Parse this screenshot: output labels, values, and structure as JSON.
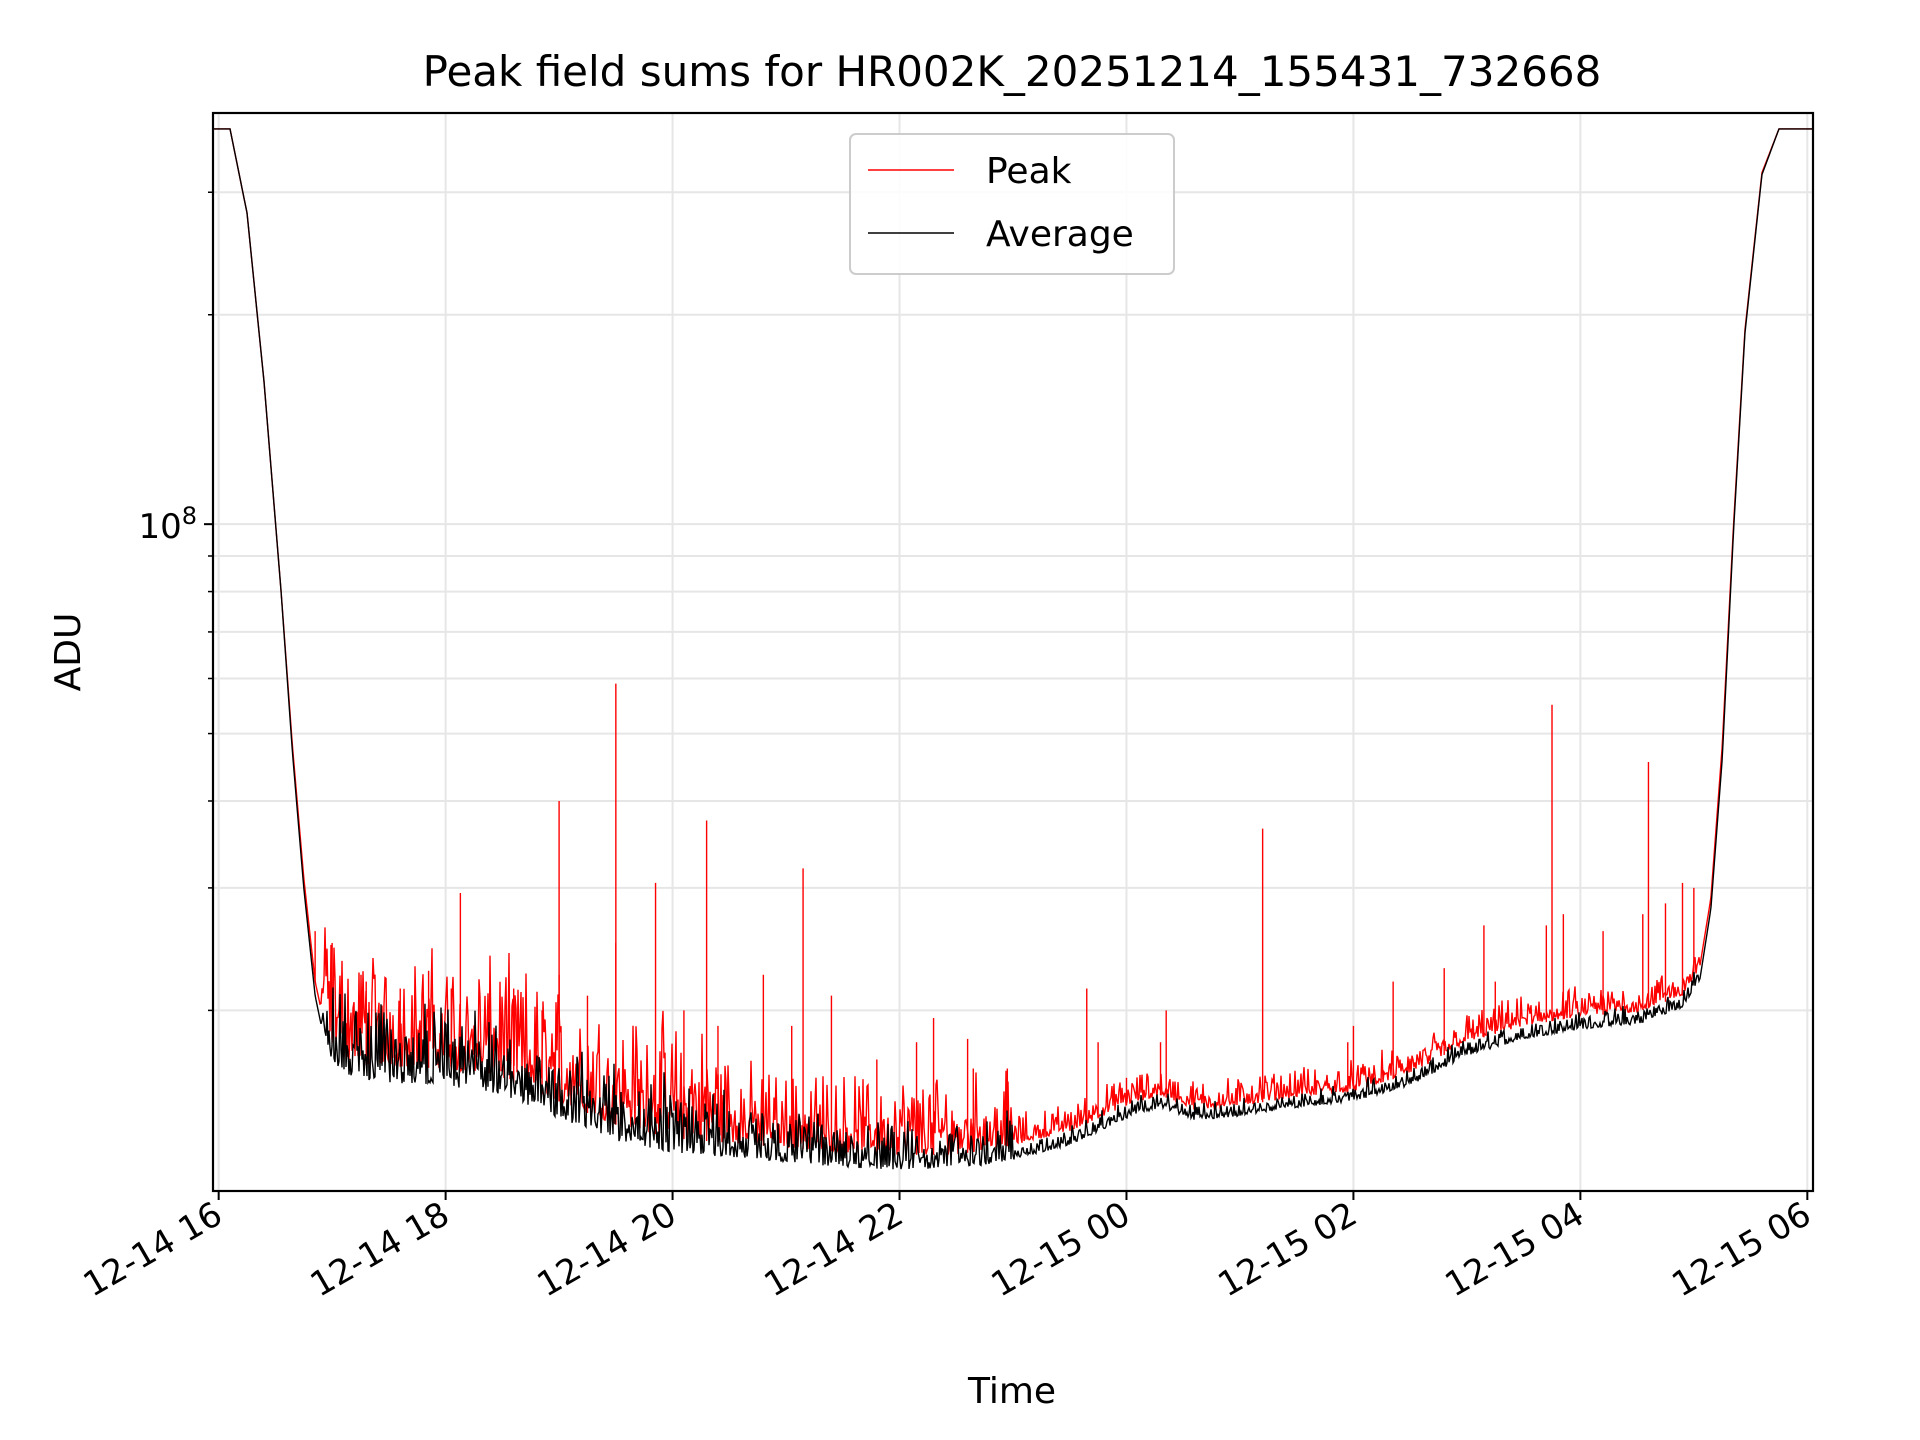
{
  "chart_data": {
    "type": "line",
    "title": "Peak field sums for HR002K_20251214_155431_732668",
    "xlabel": "Time",
    "ylabel": "ADU",
    "yscale": "log",
    "grid": true,
    "legend_position": "top-center",
    "xlim_hours": [
      15.95,
      30.05
    ],
    "ylim": [
      11000000,
      390000000
    ],
    "x_ticks": [
      {
        "hour": 16,
        "label": "12-14 16"
      },
      {
        "hour": 18,
        "label": "12-14 18"
      },
      {
        "hour": 20,
        "label": "12-14 20"
      },
      {
        "hour": 22,
        "label": "12-14 22"
      },
      {
        "hour": 24,
        "label": "12-15 00"
      },
      {
        "hour": 26,
        "label": "12-15 02"
      },
      {
        "hour": 28,
        "label": "12-15 04"
      },
      {
        "hour": 30,
        "label": "12-15 06"
      }
    ],
    "y_major_tick": {
      "value": 100000000,
      "base": "10",
      "exponent": "8"
    },
    "y_minor_ticks": [
      20000000,
      30000000,
      40000000,
      50000000,
      60000000,
      70000000,
      80000000,
      90000000,
      200000000,
      300000000
    ],
    "series": [
      {
        "name": "Peak",
        "color": "#ff0000",
        "x_hours": [
          15.95,
          16.1,
          16.25,
          16.4,
          16.55,
          16.65,
          16.75,
          16.85,
          16.95,
          17.1,
          17.3,
          17.6,
          18.0,
          18.5,
          19.0,
          19.5,
          20.0,
          20.5,
          21.0,
          21.5,
          22.0,
          22.5,
          23.0,
          23.5,
          24.0,
          24.3,
          24.6,
          25.0,
          25.5,
          26.0,
          26.5,
          27.0,
          27.5,
          28.0,
          28.5,
          28.9,
          29.05,
          29.15,
          29.25,
          29.35,
          29.45,
          29.6,
          29.75,
          29.9,
          30.05
        ],
        "y_values": [
          370000000,
          370000000,
          280000000,
          160000000,
          80000000,
          48000000,
          31000000,
          22000000,
          18500000,
          17000000,
          16700000,
          16600000,
          16500000,
          16000000,
          14800000,
          13700000,
          13100000,
          12900000,
          12700000,
          12500000,
          12400000,
          12400000,
          12800000,
          13400000,
          14600000,
          15100000,
          14400000,
          14600000,
          15000000,
          15300000,
          16200000,
          18000000,
          19000000,
          19600000,
          19900000,
          21000000,
          23000000,
          29000000,
          48000000,
          100000000,
          190000000,
          320000000,
          370000000,
          370000000,
          370000000
        ],
        "spikes": [
          {
            "hour": 16.85,
            "value": 26000000
          },
          {
            "hour": 17.0,
            "value": 25000000
          },
          {
            "hour": 17.3,
            "value": 22000000
          },
          {
            "hour": 17.6,
            "value": 21500000
          },
          {
            "hour": 17.85,
            "value": 22800000
          },
          {
            "hour": 18.05,
            "value": 21500000
          },
          {
            "hour": 18.13,
            "value": 29500000
          },
          {
            "hour": 18.6,
            "value": 21500000
          },
          {
            "hour": 18.85,
            "value": 20000000
          },
          {
            "hour": 19.0,
            "value": 22500000
          },
          {
            "hour": 19.25,
            "value": 21000000
          },
          {
            "hour": 19.5,
            "value": 25000000
          },
          {
            "hour": 19.0,
            "value": 40000000
          },
          {
            "hour": 19.5,
            "value": 59000000
          },
          {
            "hour": 19.85,
            "value": 30500000
          },
          {
            "hour": 20.1,
            "value": 20000000
          },
          {
            "hour": 20.3,
            "value": 37500000
          },
          {
            "hour": 20.4,
            "value": 19000000
          },
          {
            "hour": 20.8,
            "value": 22500000
          },
          {
            "hour": 21.05,
            "value": 19000000
          },
          {
            "hour": 21.15,
            "value": 32000000
          },
          {
            "hour": 21.4,
            "value": 21000000
          },
          {
            "hour": 21.8,
            "value": 17000000
          },
          {
            "hour": 22.15,
            "value": 18000000
          },
          {
            "hour": 22.3,
            "value": 19500000
          },
          {
            "hour": 22.6,
            "value": 18200000
          },
          {
            "hour": 22.65,
            "value": 16500000
          },
          {
            "hour": 22.95,
            "value": 16500000
          },
          {
            "hour": 23.65,
            "value": 21500000
          },
          {
            "hour": 23.75,
            "value": 18000000
          },
          {
            "hour": 24.0,
            "value": 16000000
          },
          {
            "hour": 24.3,
            "value": 18000000
          },
          {
            "hour": 24.35,
            "value": 20000000
          },
          {
            "hour": 25.2,
            "value": 36500000
          },
          {
            "hour": 25.95,
            "value": 18000000
          },
          {
            "hour": 26.0,
            "value": 19000000
          },
          {
            "hour": 26.35,
            "value": 22000000
          },
          {
            "hour": 26.8,
            "value": 23000000
          },
          {
            "hour": 27.15,
            "value": 26500000
          },
          {
            "hour": 27.25,
            "value": 22000000
          },
          {
            "hour": 27.7,
            "value": 26500000
          },
          {
            "hour": 27.75,
            "value": 55000000
          },
          {
            "hour": 27.85,
            "value": 27500000
          },
          {
            "hour": 28.2,
            "value": 26000000
          },
          {
            "hour": 28.55,
            "value": 27500000
          },
          {
            "hour": 28.6,
            "value": 45500000
          },
          {
            "hour": 28.75,
            "value": 28500000
          },
          {
            "hour": 28.9,
            "value": 30500000
          },
          {
            "hour": 29.0,
            "value": 30000000
          }
        ]
      },
      {
        "name": "Average",
        "color": "#000000",
        "x_hours": [
          15.95,
          16.1,
          16.25,
          16.4,
          16.55,
          16.65,
          16.75,
          16.85,
          16.95,
          17.1,
          17.3,
          17.6,
          18.0,
          18.5,
          19.0,
          19.5,
          20.0,
          20.5,
          21.0,
          21.5,
          22.0,
          22.5,
          23.0,
          23.5,
          24.0,
          24.3,
          24.6,
          25.0,
          25.5,
          26.0,
          26.5,
          27.0,
          27.5,
          28.0,
          28.5,
          28.9,
          29.05,
          29.15,
          29.25,
          29.35,
          29.45,
          29.6,
          29.75,
          29.9,
          30.05
        ],
        "y_values": [
          370000000,
          370000000,
          280000000,
          160000000,
          80000000,
          47000000,
          30000000,
          21000000,
          17500000,
          16200000,
          15900000,
          15700000,
          15600000,
          15100000,
          14000000,
          13000000,
          12500000,
          12300000,
          12100000,
          11900000,
          11800000,
          11800000,
          12200000,
          12800000,
          14000000,
          14500000,
          13900000,
          14100000,
          14500000,
          14800000,
          15600000,
          17200000,
          18200000,
          18800000,
          19100000,
          20200000,
          22000000,
          28000000,
          46000000,
          98000000,
          188000000,
          318000000,
          370000000,
          370000000,
          370000000
        ]
      }
    ]
  }
}
